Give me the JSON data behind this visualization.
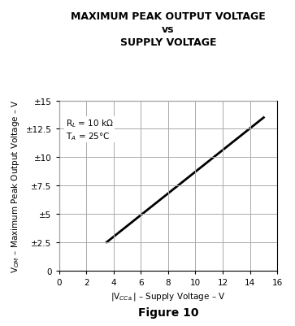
{
  "title_line1": "MAXIMUM PEAK OUTPUT VOLTAGE",
  "title_line2": "vs",
  "title_line3": "SUPPLY VOLTAGE",
  "xlabel": "|V$_{CC±}$| – Supply Voltage – V",
  "ylabel": "V$_{OM}$ – Maximum Peak Output Voltage – V",
  "figure_caption": "Figure 10",
  "annotation_line1": "R$_L$ = 10 kΩ",
  "annotation_line2": "T$_A$ = 25°C",
  "line_x": [
    3.5,
    15.0
  ],
  "line_y": [
    2.5,
    13.5
  ],
  "xlim": [
    0,
    16
  ],
  "ylim": [
    0,
    15
  ],
  "xticks": [
    0,
    2,
    4,
    6,
    8,
    10,
    12,
    14,
    16
  ],
  "yticks": [
    0,
    2.5,
    5.0,
    7.5,
    10.0,
    12.5,
    15.0
  ],
  "ytick_labels": [
    "0",
    "±2.5",
    "±5",
    "±7.5",
    "±10",
    "±12.5",
    "±15"
  ],
  "line_color": "#000000",
  "line_width": 2.0,
  "grid_color": "#aaaaaa",
  "background_color": "#ffffff",
  "title_fontsize": 9,
  "label_fontsize": 7.5,
  "tick_fontsize": 7.5,
  "annotation_fontsize": 7.5,
  "caption_fontsize": 10
}
